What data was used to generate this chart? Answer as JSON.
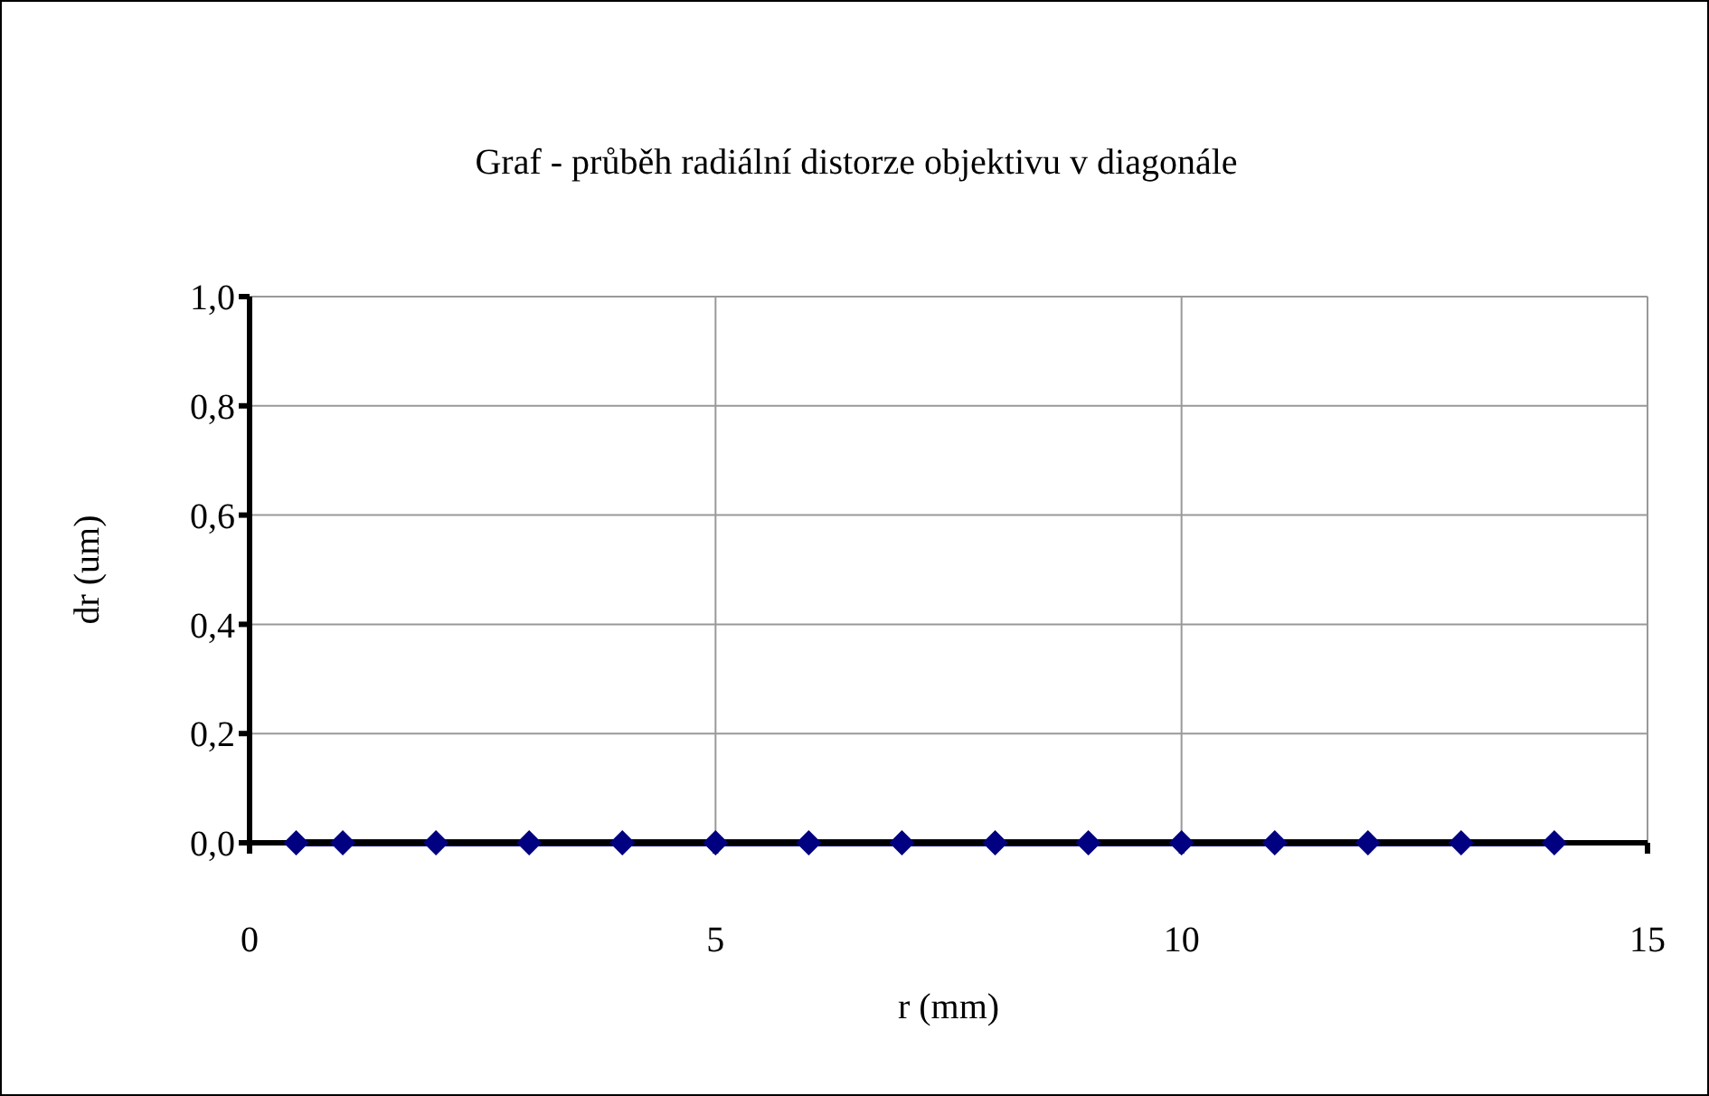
{
  "chart_data": {
    "type": "line",
    "title": "Graf - průběh radiální distorze objektivu v diagonále",
    "xlabel": "r (mm)",
    "ylabel": "dr (um)",
    "x": [
      0.5,
      1,
      2,
      3,
      4,
      5,
      6,
      7,
      8,
      9,
      10,
      11,
      12,
      13,
      14
    ],
    "series": [
      {
        "color": "#000080",
        "values": [
          0,
          0,
          0,
          0,
          0,
          0,
          0,
          0,
          0,
          0,
          0,
          0,
          0,
          0,
          0
        ]
      }
    ],
    "xlim": [
      0,
      15
    ],
    "xticks": [
      0,
      5,
      10,
      15
    ],
    "ylim": [
      0,
      1
    ],
    "yticks": [
      {
        "value": 0,
        "label": "0,0"
      },
      {
        "value": 0.2,
        "label": "0,2"
      },
      {
        "value": 0.4,
        "label": "0,4"
      },
      {
        "value": 0.6,
        "label": "0,6"
      },
      {
        "value": 0.8,
        "label": "0,8"
      },
      {
        "value": 1,
        "label": "1,0"
      }
    ],
    "grid": true,
    "marker": "diamond",
    "line_style": "solid",
    "legend": false
  }
}
